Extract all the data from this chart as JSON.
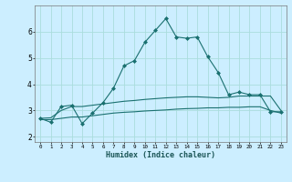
{
  "xlabel": "Humidex (Indice chaleur)",
  "background_color": "#cceeff",
  "grid_color": "#aadddd",
  "line_color": "#1a7070",
  "x": [
    0,
    1,
    2,
    3,
    4,
    5,
    6,
    7,
    8,
    9,
    10,
    11,
    12,
    13,
    14,
    15,
    16,
    17,
    18,
    19,
    20,
    21,
    22,
    23
  ],
  "y_main": [
    2.7,
    2.55,
    3.15,
    3.2,
    2.5,
    2.9,
    3.3,
    3.85,
    4.7,
    4.9,
    5.6,
    6.05,
    6.5,
    5.8,
    5.75,
    5.8,
    5.05,
    4.45,
    3.6,
    3.7,
    3.6,
    3.6,
    2.95,
    2.95
  ],
  "y_upper": [
    2.7,
    2.72,
    3.0,
    3.15,
    3.15,
    3.2,
    3.25,
    3.3,
    3.35,
    3.38,
    3.42,
    3.45,
    3.48,
    3.5,
    3.52,
    3.52,
    3.5,
    3.48,
    3.5,
    3.55,
    3.55,
    3.55,
    3.55,
    3.0
  ],
  "y_lower": [
    2.65,
    2.65,
    2.7,
    2.75,
    2.75,
    2.8,
    2.85,
    2.9,
    2.93,
    2.95,
    2.98,
    3.0,
    3.02,
    3.05,
    3.07,
    3.08,
    3.1,
    3.1,
    3.12,
    3.12,
    3.14,
    3.14,
    3.0,
    2.9
  ],
  "ylim": [
    1.8,
    7.0
  ],
  "yticks": [
    2,
    3,
    4,
    5,
    6
  ],
  "xticks": [
    0,
    1,
    2,
    3,
    4,
    5,
    6,
    7,
    8,
    9,
    10,
    11,
    12,
    13,
    14,
    15,
    16,
    17,
    18,
    19,
    20,
    21,
    22,
    23
  ],
  "xlabels": [
    "0",
    "1",
    "2",
    "3",
    "4",
    "5",
    "6",
    "7",
    "8",
    "9",
    "10",
    "11",
    "12",
    "13",
    "14",
    "15",
    "16",
    "17",
    "18",
    "19",
    "20",
    "21",
    "22",
    "23"
  ]
}
